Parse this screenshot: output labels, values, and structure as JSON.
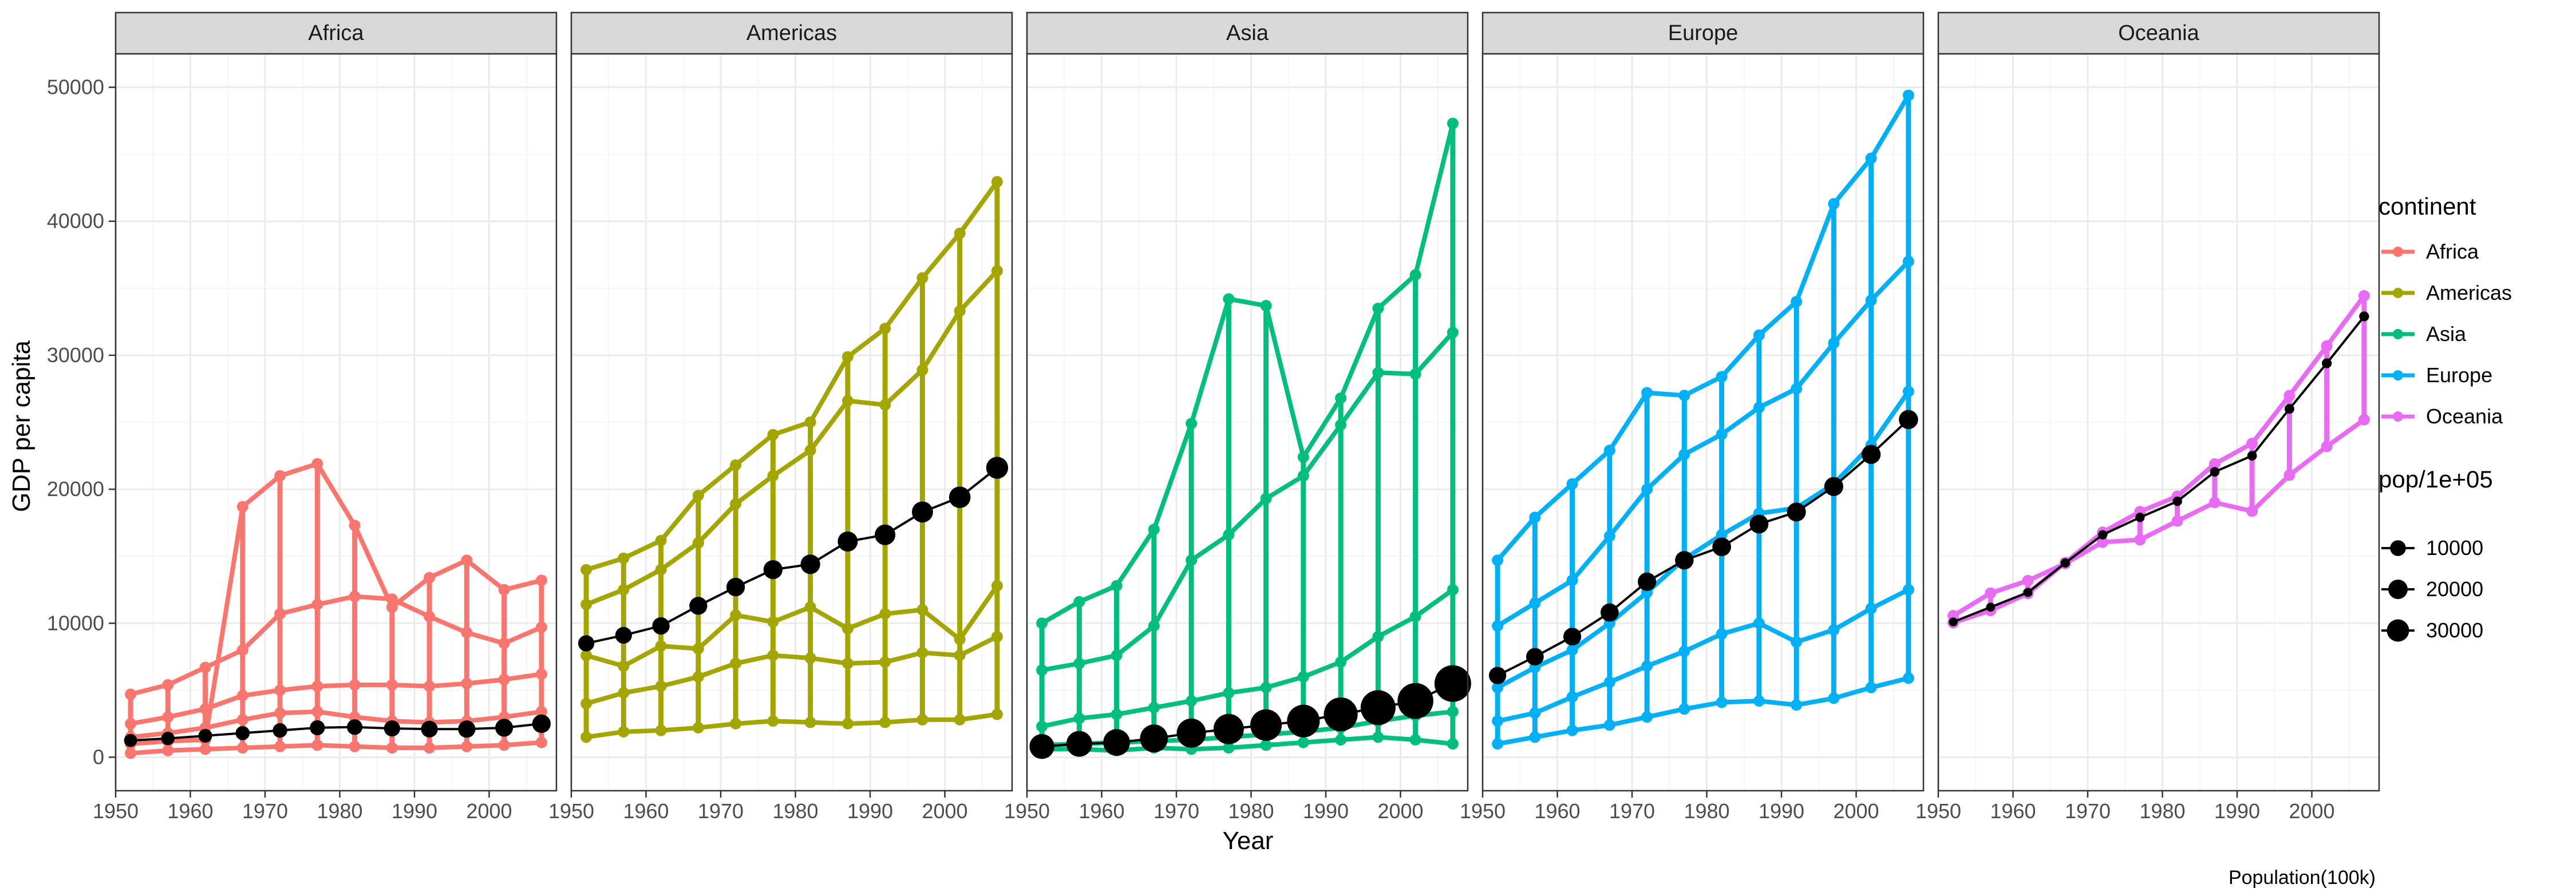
{
  "chart_data": {
    "type": "line",
    "ylabel": "GDP per capita",
    "xlabel": "Year",
    "caption": "Population(100k)",
    "xlim": [
      1950,
      2009
    ],
    "ylim": [
      -2500,
      52500
    ],
    "x_ticks": [
      1950,
      1960,
      1970,
      1980,
      1990,
      2000
    ],
    "y_ticks": [
      0,
      10000,
      20000,
      30000,
      40000,
      50000
    ],
    "y_tick_labels": [
      "0",
      "10000",
      "20000",
      "30000",
      "40000",
      "50000"
    ],
    "grid": true,
    "legend_position": "right",
    "color_legend": {
      "title": "continent",
      "entries": [
        {
          "name": "Africa",
          "color": "#F8766D"
        },
        {
          "name": "Americas",
          "color": "#A3A500"
        },
        {
          "name": "Asia",
          "color": "#00BF7D"
        },
        {
          "name": "Europe",
          "color": "#00B0F6"
        },
        {
          "name": "Oceania",
          "color": "#E76BF3"
        }
      ]
    },
    "size_legend": {
      "title": "pop/1e+05",
      "entries": [
        {
          "label": "10000",
          "value": 10000
        },
        {
          "label": "20000",
          "value": 20000
        },
        {
          "label": "30000",
          "value": 30000
        }
      ]
    },
    "years": [
      1952,
      1957,
      1962,
      1967,
      1972,
      1977,
      1982,
      1987,
      1992,
      1997,
      2002,
      2007
    ],
    "panels": [
      {
        "name": "Africa",
        "color": "#F8766D",
        "countries": [
          {
            "values": [
              300,
              500,
              600,
              700,
              800,
              900,
              800,
              700,
              700,
              800,
              900,
              1100
            ]
          },
          {
            "values": [
              1500,
              1800,
              2200,
              2800,
              3300,
              3400,
              3000,
              2700,
              2600,
              2700,
              3000,
              3400
            ]
          },
          {
            "values": [
              2500,
              3000,
              3600,
              4600,
              5000,
              5300,
              5400,
              5400,
              5300,
              5500,
              5800,
              6200
            ]
          },
          {
            "values": [
              4700,
              5400,
              6700,
              8000,
              10700,
              11400,
              12000,
              11800,
              10500,
              9300,
              8500,
              9700
            ]
          },
          {
            "values": [
              1000,
              1200,
              1300,
              18700,
              21000,
              21900,
              17300,
              11200,
              13400,
              14700,
              12500,
              13200
            ]
          }
        ],
        "summary": [
          {
            "year": 1952,
            "gdp": 1250,
            "pop": 4900
          },
          {
            "year": 1957,
            "gdp": 1400,
            "pop": 5400
          },
          {
            "year": 1962,
            "gdp": 1600,
            "pop": 6000
          },
          {
            "year": 1967,
            "gdp": 1800,
            "pop": 6700
          },
          {
            "year": 1972,
            "gdp": 2000,
            "pop": 7500
          },
          {
            "year": 1977,
            "gdp": 2200,
            "pop": 8500
          },
          {
            "year": 1982,
            "gdp": 2250,
            "pop": 9600
          },
          {
            "year": 1987,
            "gdp": 2150,
            "pop": 10900
          },
          {
            "year": 1992,
            "gdp": 2100,
            "pop": 12300
          },
          {
            "year": 1997,
            "gdp": 2100,
            "pop": 13800
          },
          {
            "year": 2002,
            "gdp": 2200,
            "pop": 15300
          },
          {
            "year": 2007,
            "gdp": 2500,
            "pop": 17000
          }
        ]
      },
      {
        "name": "Americas",
        "color": "#A3A500",
        "countries": [
          {
            "values": [
              1500,
              1900,
              2000,
              2200,
              2500,
              2700,
              2600,
              2500,
              2600,
              2800,
              2800,
              3200
            ]
          },
          {
            "values": [
              4000,
              4800,
              5300,
              6000,
              7000,
              7600,
              7400,
              7000,
              7100,
              7800,
              7600,
              9000
            ]
          },
          {
            "values": [
              7600,
              6800,
              8300,
              8100,
              10600,
              10100,
              11200,
              9600,
              10700,
              11000,
              8800,
              12800
            ]
          },
          {
            "values": [
              11400,
              12500,
              14000,
              16000,
              18900,
              21000,
              22900,
              26600,
              26300,
              28900,
              33300,
              36300
            ]
          },
          {
            "values": [
              13990,
              14850,
              16170,
              19530,
              21810,
              24070,
              25010,
              29880,
              32000,
              35770,
              39100,
              42950
            ]
          }
        ],
        "summary": [
          {
            "year": 1952,
            "gdp": 8500,
            "pop": 11000
          },
          {
            "year": 1957,
            "gdp": 9100,
            "pop": 12300
          },
          {
            "year": 1962,
            "gdp": 9800,
            "pop": 13900
          },
          {
            "year": 1967,
            "gdp": 11300,
            "pop": 15500
          },
          {
            "year": 1972,
            "gdp": 12700,
            "pop": 17100
          },
          {
            "year": 1977,
            "gdp": 14000,
            "pop": 18700
          },
          {
            "year": 1982,
            "gdp": 14400,
            "pop": 20400
          },
          {
            "year": 1987,
            "gdp": 16100,
            "pop": 22100
          },
          {
            "year": 1992,
            "gdp": 16600,
            "pop": 23900
          },
          {
            "year": 1997,
            "gdp": 18300,
            "pop": 25600
          },
          {
            "year": 2002,
            "gdp": 19400,
            "pop": 27200
          },
          {
            "year": 2007,
            "gdp": 21600,
            "pop": 28800
          }
        ]
      },
      {
        "name": "Asia",
        "color": "#00BF7D",
        "countries": [
          {
            "values": [
              600,
              600,
              500,
              700,
              600,
              700,
              900,
              1100,
              1300,
              1500,
              1300,
              1000
            ]
          },
          {
            "values": [
              900,
              1000,
              1100,
              1200,
              1300,
              1500,
              1700,
              1900,
              2200,
              2700,
              3100,
              3400
            ]
          },
          {
            "values": [
              2300,
              2900,
              3200,
              3700,
              4200,
              4800,
              5200,
              6000,
              7100,
              9000,
              10500,
              12500
            ]
          },
          {
            "values": [
              6500,
              7000,
              7600,
              9800,
              14700,
              16600,
              19300,
              21000,
              24800,
              28700,
              28600,
              31700
            ]
          },
          {
            "values": [
              10000,
              11600,
              12800,
              17000,
              24900,
              34200,
              33700,
              22400,
              26800,
              33500,
              36000,
              47300
            ]
          }
        ],
        "summary": [
          {
            "year": 1952,
            "gdp": 800,
            "pop": 41000
          },
          {
            "year": 1957,
            "gdp": 1000,
            "pop": 45600
          },
          {
            "year": 1962,
            "gdp": 1100,
            "pop": 50100
          },
          {
            "year": 1967,
            "gdp": 1400,
            "pop": 56000
          },
          {
            "year": 1972,
            "gdp": 1800,
            "pop": 63100
          },
          {
            "year": 1977,
            "gdp": 2100,
            "pop": 70000
          },
          {
            "year": 1982,
            "gdp": 2400,
            "pop": 76800
          },
          {
            "year": 1987,
            "gdp": 2700,
            "pop": 84500
          },
          {
            "year": 1992,
            "gdp": 3200,
            "pop": 92200
          },
          {
            "year": 1997,
            "gdp": 3700,
            "pop": 99700
          },
          {
            "year": 2002,
            "gdp": 4200,
            "pop": 106000
          },
          {
            "year": 2007,
            "gdp": 5500,
            "pop": 112000
          }
        ]
      },
      {
        "name": "Europe",
        "color": "#00B0F6",
        "countries": [
          {
            "values": [
              1000,
              1500,
              2000,
              2400,
              3000,
              3600,
              4100,
              4200,
              3900,
              4400,
              5200,
              5900
            ]
          },
          {
            "values": [
              2700,
              3300,
              4500,
              5600,
              6800,
              7900,
              9200,
              10000,
              8600,
              9500,
              11100,
              12500
            ]
          },
          {
            "values": [
              5200,
              6700,
              8000,
              10000,
              12300,
              14800,
              16600,
              18200,
              18600,
              20400,
              23300,
              27300
            ]
          },
          {
            "values": [
              9800,
              11500,
              13200,
              16500,
              20000,
              22600,
              24100,
              26100,
              27500,
              30900,
              34100,
              37000
            ]
          },
          {
            "values": [
              14700,
              17900,
              20400,
              22900,
              27200,
              27000,
              28400,
              31500,
              34000,
              41300,
              44700,
              49400
            ]
          }
        ],
        "summary": [
          {
            "year": 1952,
            "gdp": 6100,
            "pop": 13900
          },
          {
            "year": 1957,
            "gdp": 7500,
            "pop": 14500
          },
          {
            "year": 1962,
            "gdp": 9000,
            "pop": 15300
          },
          {
            "year": 1967,
            "gdp": 10800,
            "pop": 16100
          },
          {
            "year": 1972,
            "gdp": 13100,
            "pop": 16800
          },
          {
            "year": 1977,
            "gdp": 14700,
            "pop": 17300
          },
          {
            "year": 1982,
            "gdp": 15700,
            "pop": 17700
          },
          {
            "year": 1987,
            "gdp": 17400,
            "pop": 18000
          },
          {
            "year": 1992,
            "gdp": 18300,
            "pop": 18400
          },
          {
            "year": 1997,
            "gdp": 20200,
            "pop": 18700
          },
          {
            "year": 2002,
            "gdp": 22600,
            "pop": 18900
          },
          {
            "year": 2007,
            "gdp": 25200,
            "pop": 19200
          }
        ]
      },
      {
        "name": "Oceania",
        "color": "#E76BF3",
        "countries": [
          {
            "values": [
              10040,
              10950,
              12220,
              14530,
              16790,
              18330,
              19480,
              21890,
              23420,
              26990,
              30690,
              34440
            ]
          },
          {
            "values": [
              10560,
              12250,
              13180,
              14460,
              16050,
              16230,
              17630,
              19010,
              18360,
              21050,
              23190,
              25190
            ]
          }
        ],
        "summary": [
          {
            "year": 1952,
            "gdp": 10100,
            "pop": 500
          },
          {
            "year": 1957,
            "gdp": 11200,
            "pop": 560
          },
          {
            "year": 1962,
            "gdp": 12300,
            "pop": 620
          },
          {
            "year": 1967,
            "gdp": 14500,
            "pop": 690
          },
          {
            "year": 1972,
            "gdp": 16600,
            "pop": 760
          },
          {
            "year": 1977,
            "gdp": 17900,
            "pop": 810
          },
          {
            "year": 1982,
            "gdp": 19100,
            "pop": 850
          },
          {
            "year": 1987,
            "gdp": 21300,
            "pop": 900
          },
          {
            "year": 1992,
            "gdp": 22500,
            "pop": 980
          },
          {
            "year": 1997,
            "gdp": 26000,
            "pop": 1040
          },
          {
            "year": 2002,
            "gdp": 29400,
            "pop": 1110
          },
          {
            "year": 2007,
            "gdp": 32900,
            "pop": 1180
          }
        ]
      }
    ]
  }
}
